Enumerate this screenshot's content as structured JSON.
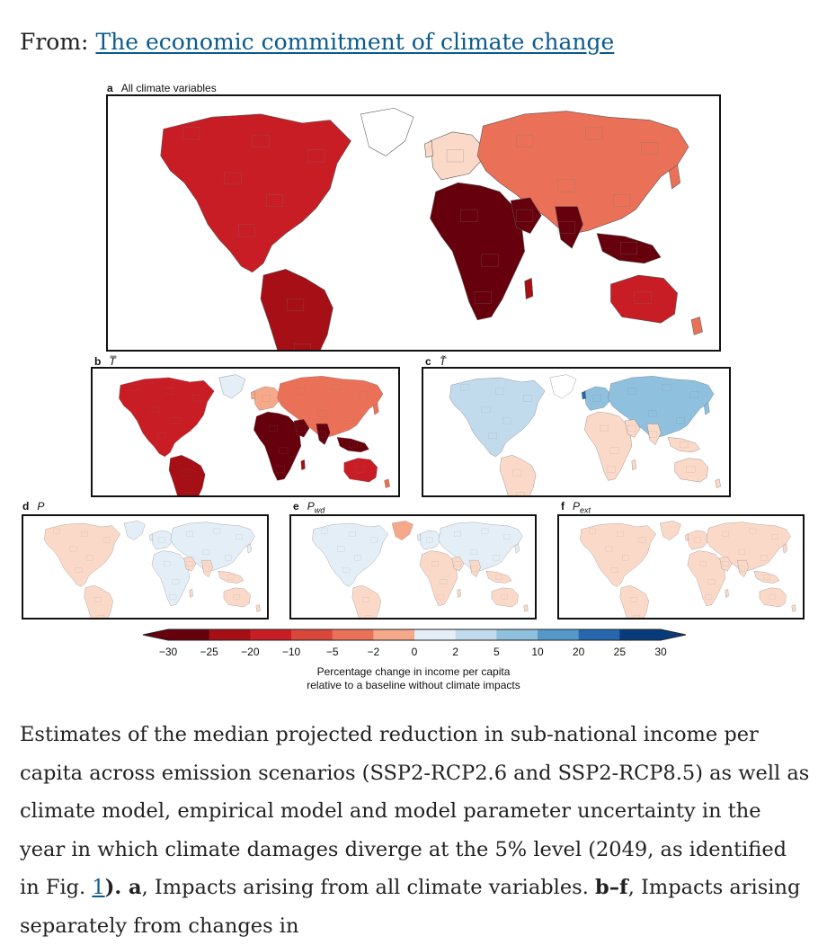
{
  "header": {
    "prefix": "From:",
    "article_title": "The economic commitment of climate change"
  },
  "panels": [
    {
      "id": "a",
      "letter": "a",
      "title": "All climate variables",
      "variant": "all"
    },
    {
      "id": "b",
      "letter": "b",
      "title": "T̅",
      "variant": "temp"
    },
    {
      "id": "c",
      "letter": "c",
      "title": "T̃",
      "variant": "tvar"
    },
    {
      "id": "d",
      "letter": "d",
      "title": "P",
      "sub": "",
      "variant": "weak_blue"
    },
    {
      "id": "e",
      "letter": "e",
      "title": "P",
      "sub": "wd",
      "variant": "weak_mix"
    },
    {
      "id": "f",
      "letter": "f",
      "title": "P",
      "sub": "ext",
      "variant": "weak_red"
    }
  ],
  "legend": {
    "ticks": [
      "−30",
      "−25",
      "−20",
      "−10",
      "−5",
      "−2",
      "0",
      "2",
      "5",
      "10",
      "20",
      "25",
      "30"
    ],
    "colors": [
      "#67000d",
      "#a50f15",
      "#c81d24",
      "#d9463a",
      "#ea7157",
      "#f6a98a",
      "#fbd9c8",
      "#e3eef6",
      "#c2dbec",
      "#8fc0de",
      "#5499c9",
      "#2767ad",
      "#083b7c"
    ],
    "title_line1": "Percentage change in income per capita",
    "title_line2": "relative to a baseline without climate impacts"
  },
  "caption": {
    "text1": "Estimates of the median projected reduction in sub-national income per capita across emission scenarios (SSP2-RCP2.6 and SSP2-RCP8.5) as well as climate model, empirical model and model parameter uncertainty in the year in which climate damages diverge at the 5% level (2049, as identified in Fig. ",
    "fig_link": "1",
    "text2": "). ",
    "bold_a": "a",
    "text3": ", Impacts arising from all climate variables. ",
    "bold_bf": "b–f",
    "text4": ", Impacts arising separately from changes in"
  }
}
